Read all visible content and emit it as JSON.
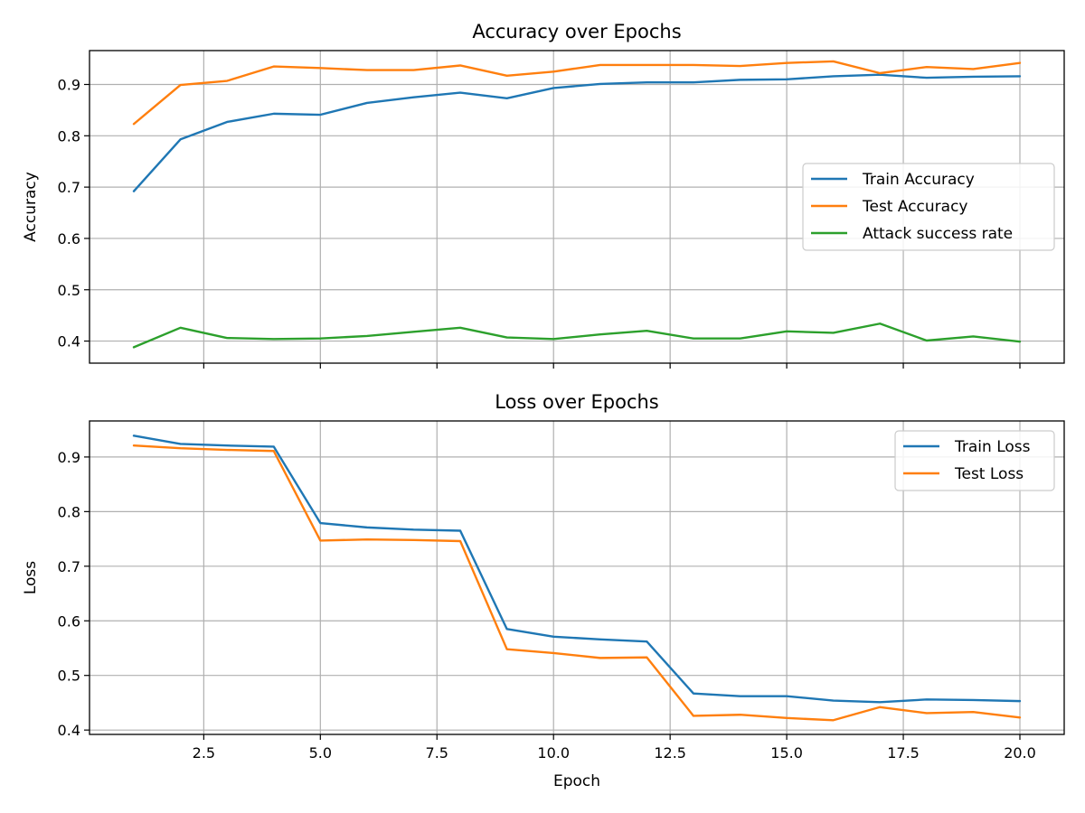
{
  "chart_data": [
    {
      "type": "line",
      "title": "Accuracy over Epochs",
      "xlabel": "",
      "ylabel": "Accuracy",
      "xlim": [
        0.05,
        20.95
      ],
      "ylim": [
        0.357,
        0.966
      ],
      "xticks": [
        2.5,
        5.0,
        7.5,
        10.0,
        12.5,
        15.0,
        17.5,
        20.0
      ],
      "xtick_labels": [
        "",
        "",
        "",
        "",
        "",
        "",
        "",
        ""
      ],
      "yticks": [
        0.4,
        0.5,
        0.6,
        0.7,
        0.8,
        0.9
      ],
      "ytick_labels": [
        "0.4",
        "0.5",
        "0.6",
        "0.7",
        "0.8",
        "0.9"
      ],
      "grid": true,
      "legend_position": "center-right",
      "x": [
        1,
        2,
        3,
        4,
        5,
        6,
        7,
        8,
        9,
        10,
        11,
        12,
        13,
        14,
        15,
        16,
        17,
        18,
        19,
        20
      ],
      "series": [
        {
          "name": "Train Accuracy",
          "color": "#1f77b4",
          "values": [
            0.692,
            0.793,
            0.827,
            0.843,
            0.841,
            0.864,
            0.875,
            0.884,
            0.873,
            0.893,
            0.901,
            0.904,
            0.904,
            0.909,
            0.91,
            0.916,
            0.919,
            0.913,
            0.915,
            0.916
          ]
        },
        {
          "name": "Test Accuracy",
          "color": "#ff7f0e",
          "values": [
            0.823,
            0.899,
            0.907,
            0.935,
            0.932,
            0.928,
            0.928,
            0.937,
            0.917,
            0.925,
            0.938,
            0.938,
            0.938,
            0.936,
            0.942,
            0.945,
            0.922,
            0.934,
            0.93,
            0.942
          ]
        },
        {
          "name": "Attack success rate",
          "color": "#2ca02c",
          "values": [
            0.388,
            0.426,
            0.406,
            0.404,
            0.405,
            0.41,
            0.418,
            0.426,
            0.407,
            0.404,
            0.413,
            0.42,
            0.405,
            0.405,
            0.419,
            0.416,
            0.434,
            0.401,
            0.409,
            0.399
          ]
        }
      ]
    },
    {
      "type": "line",
      "title": "Loss over Epochs",
      "xlabel": "Epoch",
      "ylabel": "Loss",
      "xlim": [
        0.05,
        20.95
      ],
      "ylim": [
        0.392,
        0.966
      ],
      "xticks": [
        2.5,
        5.0,
        7.5,
        10.0,
        12.5,
        15.0,
        17.5,
        20.0
      ],
      "xtick_labels": [
        "2.5",
        "5.0",
        "7.5",
        "10.0",
        "12.5",
        "15.0",
        "17.5",
        "20.0"
      ],
      "yticks": [
        0.4,
        0.5,
        0.6,
        0.7,
        0.8,
        0.9
      ],
      "ytick_labels": [
        "0.4",
        "0.5",
        "0.6",
        "0.7",
        "0.8",
        "0.9"
      ],
      "grid": true,
      "legend_position": "top-right",
      "x": [
        1,
        2,
        3,
        4,
        5,
        6,
        7,
        8,
        9,
        10,
        11,
        12,
        13,
        14,
        15,
        16,
        17,
        18,
        19,
        20
      ],
      "series": [
        {
          "name": "Train Loss",
          "color": "#1f77b4",
          "values": [
            0.939,
            0.924,
            0.921,
            0.919,
            0.779,
            0.771,
            0.767,
            0.765,
            0.585,
            0.571,
            0.566,
            0.562,
            0.467,
            0.462,
            0.462,
            0.454,
            0.451,
            0.456,
            0.455,
            0.453
          ]
        },
        {
          "name": "Test Loss",
          "color": "#ff7f0e",
          "values": [
            0.921,
            0.916,
            0.913,
            0.911,
            0.747,
            0.749,
            0.748,
            0.746,
            0.548,
            0.541,
            0.532,
            0.533,
            0.426,
            0.428,
            0.422,
            0.418,
            0.442,
            0.431,
            0.433,
            0.423
          ]
        }
      ]
    }
  ]
}
